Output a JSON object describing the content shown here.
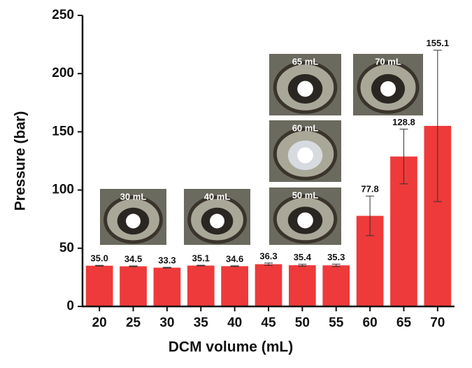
{
  "chart_data": {
    "type": "bar",
    "xlabel": "DCM volume (mL)",
    "ylabel": "Pressure (bar)",
    "categories": [
      "20",
      "25",
      "30",
      "35",
      "40",
      "45",
      "50",
      "55",
      "60",
      "65",
      "70"
    ],
    "values": [
      35.0,
      34.5,
      33.3,
      35.1,
      34.6,
      36.3,
      35.4,
      35.3,
      77.8,
      128.8,
      155.1
    ],
    "value_labels": [
      "35.0",
      "34.5",
      "33.3",
      "35.1",
      "34.6",
      "36.3",
      "35.4",
      "35.3",
      "77.8",
      "128.8",
      "155.1"
    ],
    "errors": [
      0.3,
      0.3,
      0.3,
      0.3,
      0.3,
      1.0,
      0.8,
      1.0,
      17,
      23.5,
      65
    ],
    "color": "#ee3a3a",
    "ylim": [
      0,
      250
    ],
    "yticks": [
      0,
      50,
      100,
      150,
      200,
      250
    ],
    "insets": [
      {
        "label": "30 mL"
      },
      {
        "label": "40 mL"
      },
      {
        "label": "50 mL"
      },
      {
        "label": "60 mL"
      },
      {
        "label": "65 mL"
      },
      {
        "label": "70 mL"
      }
    ]
  }
}
